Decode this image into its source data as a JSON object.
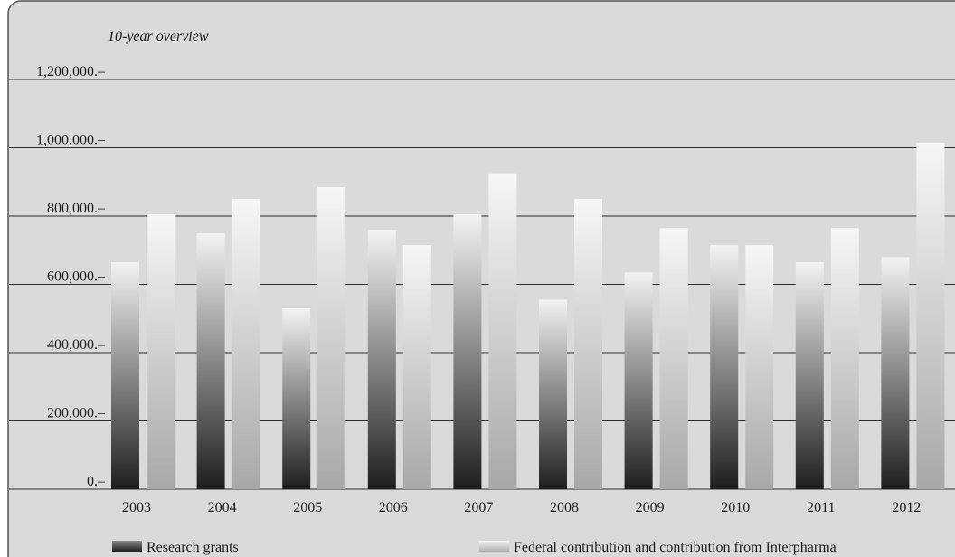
{
  "chart_data": {
    "type": "bar",
    "title": "10-year overview",
    "xlabel": "",
    "ylabel": "",
    "ylim": [
      0,
      1200000
    ],
    "yticks": [
      0,
      200000,
      400000,
      600000,
      800000,
      1000000,
      1200000
    ],
    "ytick_labels": [
      "0.–",
      "200,000.–",
      "400,000.–",
      "600,000.–",
      "800,000.–",
      "1,000,000.–",
      "1,200,000.–"
    ],
    "categories": [
      "2003",
      "2004",
      "2005",
      "2006",
      "2007",
      "2008",
      "2009",
      "2010",
      "2011",
      "2012"
    ],
    "series": [
      {
        "name": "Research grants",
        "values": [
          665000,
          750000,
          530000,
          760000,
          805000,
          555000,
          635000,
          715000,
          665000,
          680000
        ]
      },
      {
        "name": "Federal contribution and contribution from Interpharma",
        "values": [
          805000,
          850000,
          885000,
          715000,
          925000,
          850000,
          765000,
          715000,
          765000,
          1015000
        ]
      }
    ],
    "grid": true,
    "legend_position": "bottom",
    "colors": {
      "background": "#dadada",
      "border": "#555555",
      "research_top": "#f3f3f3",
      "research_bottom": "#1e1e1e",
      "federal_top": "#f7f7f7",
      "federal_bottom": "#a8a8a8"
    }
  }
}
